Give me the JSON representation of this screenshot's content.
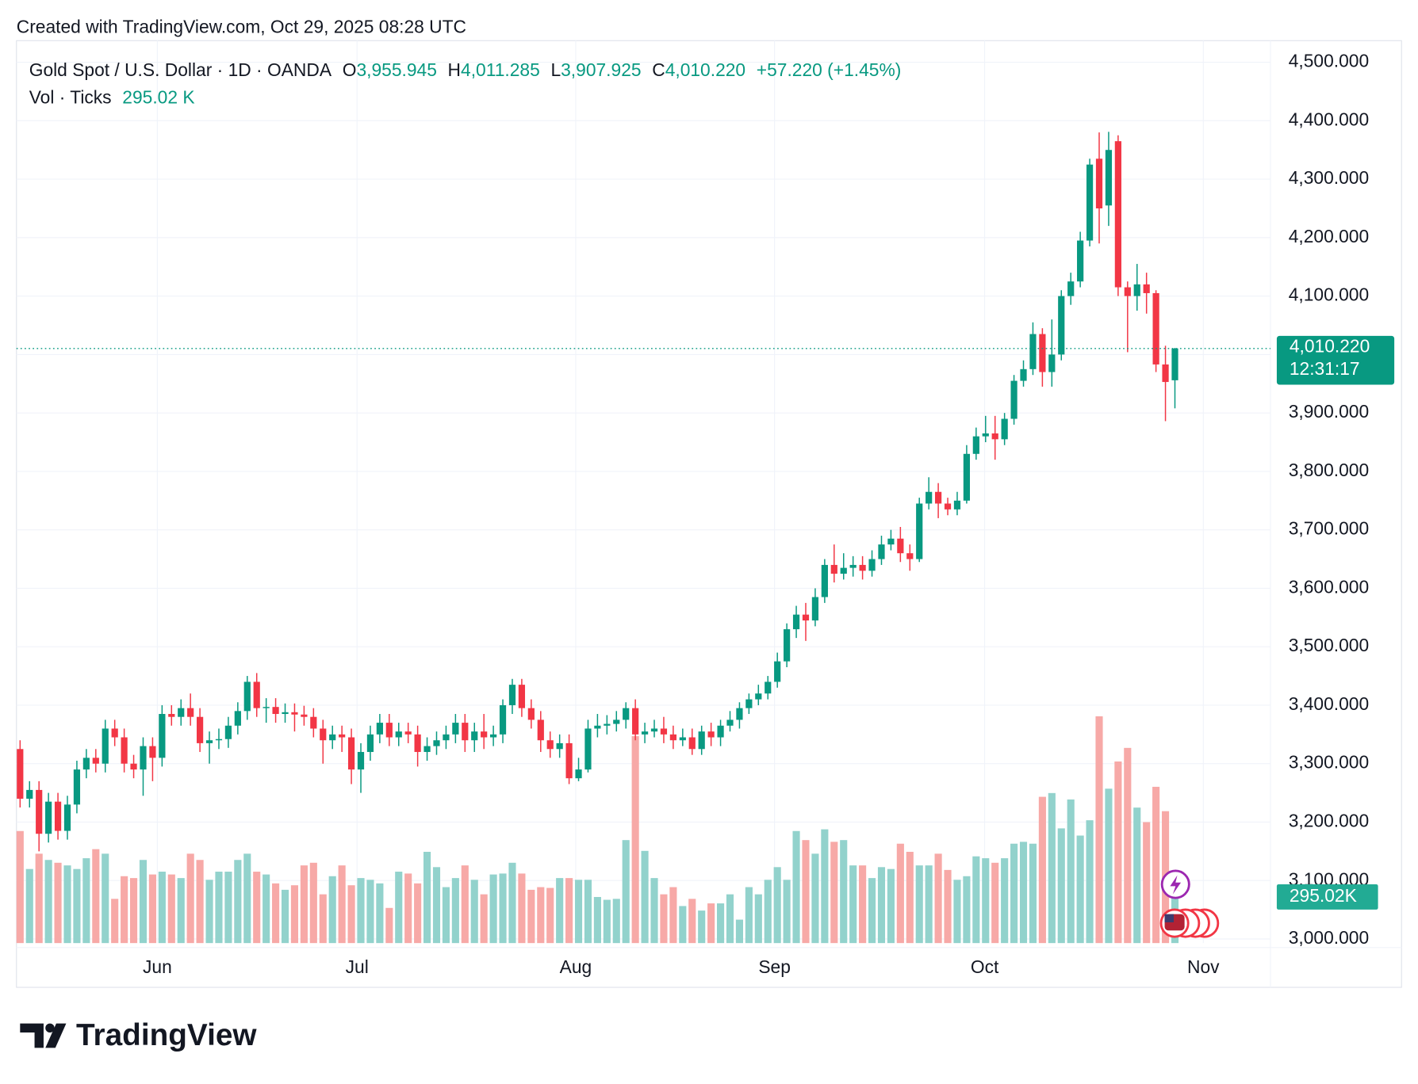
{
  "created": "Created with TradingView.com, Oct 29, 2025 08:28 UTC",
  "brand": "TradingView",
  "header": {
    "symbol": "Gold Spot / U.S. Dollar · 1D · OANDA",
    "o_label": "O",
    "o": "3,955.945",
    "h_label": "H",
    "h": "4,011.285",
    "l_label": "L",
    "l": "3,907.925",
    "c_label": "C",
    "c": "4,010.220",
    "change": "+57.220 (+1.45%)",
    "vol_label": "Vol · Ticks",
    "vol": "295.02 K"
  },
  "chart_data": {
    "type": "candlestick",
    "open": [
      3325,
      3240,
      3255,
      3180,
      3235,
      3185,
      3230,
      3290,
      3310,
      3300,
      3360,
      3345,
      3300,
      3290,
      3330,
      3310,
      3385,
      3380,
      3395,
      3380,
      3335,
      3340,
      3342,
      3365,
      3390,
      3440,
      3395,
      3397,
      3385,
      3388,
      3384,
      3380,
      3360,
      3340,
      3350,
      3345,
      3290,
      3320,
      3350,
      3370,
      3345,
      3355,
      3350,
      3320,
      3330,
      3340,
      3350,
      3370,
      3340,
      3355,
      3345,
      3350,
      3400,
      3435,
      3395,
      3375,
      3340,
      3325,
      3335,
      3275,
      3290,
      3360,
      3365,
      3368,
      3375,
      3395,
      3350,
      3355,
      3360,
      3350,
      3340,
      3345,
      3325,
      3355,
      3345,
      3365,
      3375,
      3395,
      3410,
      3420,
      3440,
      3475,
      3530,
      3555,
      3545,
      3585,
      3640,
      3625,
      3635,
      3640,
      3630,
      3650,
      3675,
      3685,
      3660,
      3650,
      3745,
      3765,
      3745,
      3735,
      3750,
      3830,
      3860,
      3865,
      3855,
      3890,
      3955,
      3975,
      4035,
      3970,
      4000,
      4100,
      4125,
      4195,
      4335,
      4255,
      4365,
      4115,
      4100,
      4120,
      4105,
      3983,
      3955.945
    ],
    "high": [
      3340,
      3270,
      3270,
      3250,
      3250,
      3245,
      3305,
      3325,
      3325,
      3375,
      3375,
      3360,
      3315,
      3345,
      3345,
      3400,
      3400,
      3410,
      3420,
      3395,
      3355,
      3360,
      3380,
      3405,
      3450,
      3455,
      3412,
      3412,
      3403,
      3403,
      3399,
      3395,
      3375,
      3365,
      3365,
      3360,
      3335,
      3365,
      3385,
      3385,
      3370,
      3370,
      3365,
      3345,
      3355,
      3365,
      3385,
      3385,
      3370,
      3385,
      3365,
      3410,
      3445,
      3445,
      3410,
      3390,
      3355,
      3350,
      3350,
      3310,
      3375,
      3385,
      3383,
      3390,
      3405,
      3410,
      3370,
      3375,
      3380,
      3365,
      3360,
      3360,
      3365,
      3370,
      3375,
      3390,
      3405,
      3420,
      3435,
      3450,
      3490,
      3540,
      3570,
      3575,
      3600,
      3650,
      3675,
      3660,
      3655,
      3655,
      3665,
      3690,
      3700,
      3705,
      3675,
      3755,
      3790,
      3780,
      3755,
      3765,
      3845,
      3875,
      3895,
      3895,
      3900,
      3965,
      3990,
      4055,
      4045,
      4060,
      4110,
      4140,
      4210,
      4335,
      4380,
      4381,
      4375,
      4125,
      4155,
      4140,
      4110,
      4015,
      4011.285
    ],
    "low": [
      3225,
      3225,
      3150,
      3165,
      3170,
      3170,
      3215,
      3275,
      3285,
      3285,
      3330,
      3285,
      3275,
      3245,
      3270,
      3295,
      3365,
      3365,
      3365,
      3320,
      3300,
      3325,
      3327,
      3350,
      3375,
      3380,
      3370,
      3370,
      3370,
      3355,
      3365,
      3345,
      3300,
      3325,
      3320,
      3265,
      3250,
      3305,
      3335,
      3330,
      3330,
      3335,
      3295,
      3305,
      3315,
      3325,
      3335,
      3320,
      3320,
      3325,
      3330,
      3335,
      3385,
      3380,
      3360,
      3320,
      3310,
      3310,
      3265,
      3270,
      3285,
      3345,
      3350,
      3355,
      3360,
      3340,
      3335,
      3345,
      3335,
      3325,
      3330,
      3315,
      3315,
      3330,
      3330,
      3355,
      3360,
      3385,
      3400,
      3410,
      3430,
      3465,
      3515,
      3510,
      3535,
      3575,
      3610,
      3615,
      3620,
      3615,
      3620,
      3640,
      3665,
      3645,
      3630,
      3645,
      3735,
      3720,
      3725,
      3725,
      3745,
      3820,
      3850,
      3820,
      3845,
      3880,
      3945,
      3965,
      3945,
      3945,
      3990,
      4085,
      4115,
      4185,
      4190,
      4220,
      4100,
      4004,
      4075,
      4070,
      3970,
      3886,
      3907.925
    ],
    "close": [
      3240,
      3255,
      3180,
      3235,
      3185,
      3230,
      3290,
      3310,
      3300,
      3360,
      3345,
      3300,
      3290,
      3330,
      3310,
      3385,
      3380,
      3395,
      3380,
      3335,
      3340,
      3342,
      3365,
      3390,
      3440,
      3395,
      3397,
      3385,
      3388,
      3384,
      3380,
      3360,
      3340,
      3350,
      3345,
      3290,
      3320,
      3350,
      3370,
      3345,
      3355,
      3350,
      3320,
      3330,
      3340,
      3350,
      3370,
      3340,
      3355,
      3345,
      3350,
      3400,
      3435,
      3395,
      3375,
      3340,
      3325,
      3335,
      3275,
      3290,
      3360,
      3365,
      3368,
      3375,
      3395,
      3350,
      3355,
      3360,
      3350,
      3340,
      3345,
      3325,
      3355,
      3345,
      3365,
      3375,
      3395,
      3410,
      3420,
      3440,
      3475,
      3530,
      3555,
      3545,
      3585,
      3640,
      3625,
      3635,
      3640,
      3630,
      3650,
      3675,
      3685,
      3660,
      3650,
      3745,
      3765,
      3745,
      3735,
      3750,
      3830,
      3860,
      3865,
      3855,
      3890,
      3955,
      3975,
      4035,
      3970,
      4000,
      4100,
      4125,
      4195,
      4325,
      4250,
      4350,
      4115,
      4100,
      4120,
      4105,
      3983,
      3953,
      4010.22
    ],
    "volume": [
      717,
      474,
      572,
      532,
      514,
      497,
      474,
      543,
      601,
      572,
      283,
      428,
      416,
      532,
      439,
      457,
      439,
      416,
      572,
      532,
      405,
      457,
      457,
      532,
      572,
      457,
      439,
      382,
      341,
      370,
      497,
      514,
      312,
      428,
      497,
      370,
      416,
      405,
      382,
      225,
      457,
      445,
      382,
      584,
      486,
      358,
      416,
      497,
      405,
      312,
      439,
      445,
      514,
      445,
      341,
      358,
      353,
      416,
      416,
      405,
      405,
      295,
      277,
      283,
      659,
      1324,
      590,
      416,
      312,
      358,
      237,
      283,
      208,
      254,
      254,
      312,
      150,
      358,
      312,
      405,
      486,
      405,
      717,
      659,
      572,
      728,
      648,
      659,
      497,
      497,
      416,
      486,
      474,
      636,
      584,
      497,
      497,
      572,
      468,
      405,
      428,
      555,
      543,
      514,
      543,
      636,
      648,
      636,
      936,
      960,
      734,
      919,
      688,
      786,
      1451,
      988,
      1162,
      1249,
      867,
      774,
      1000,
      844,
      295.02
    ],
    "last_price_label": "4,010.220",
    "countdown": "12:31:17",
    "last_volume_label": "295.02K",
    "xticks": [
      {
        "value": 14.5,
        "label": "Jun"
      },
      {
        "value": 35.6,
        "label": "Jul"
      },
      {
        "value": 58.7,
        "label": "Aug"
      },
      {
        "value": 79.7,
        "label": "Sep"
      },
      {
        "value": 101.9,
        "label": "Oct"
      },
      {
        "value": 125.0,
        "label": "Nov"
      }
    ],
    "ylim": [
      2993,
      4537
    ],
    "yticks": [
      {
        "value": 3000,
        "label": "3,000.000"
      },
      {
        "value": 3100,
        "label": "3,100.000"
      },
      {
        "value": 3200,
        "label": "3,200.000"
      },
      {
        "value": 3300,
        "label": "3,300.000"
      },
      {
        "value": 3400,
        "label": "3,400.000"
      },
      {
        "value": 3500,
        "label": "3,500.000"
      },
      {
        "value": 3600,
        "label": "3,600.000"
      },
      {
        "value": 3700,
        "label": "3,700.000"
      },
      {
        "value": 3800,
        "label": "3,800.000"
      },
      {
        "value": 3900,
        "label": "3,900.000"
      },
      {
        "value": 4000,
        "label": "4,000.000"
      },
      {
        "value": 4100,
        "label": "4,100.000"
      },
      {
        "value": 4200,
        "label": "4,200.000"
      },
      {
        "value": 4300,
        "label": "4,300.000"
      },
      {
        "value": 4400,
        "label": "4,400.000"
      },
      {
        "value": 4500,
        "label": "4,500.000"
      }
    ],
    "grid": true,
    "up_color": "#089981",
    "down_color": "#f23645",
    "up_volume_color": "#92d2cc",
    "down_volume_color": "#f7a9a7"
  }
}
